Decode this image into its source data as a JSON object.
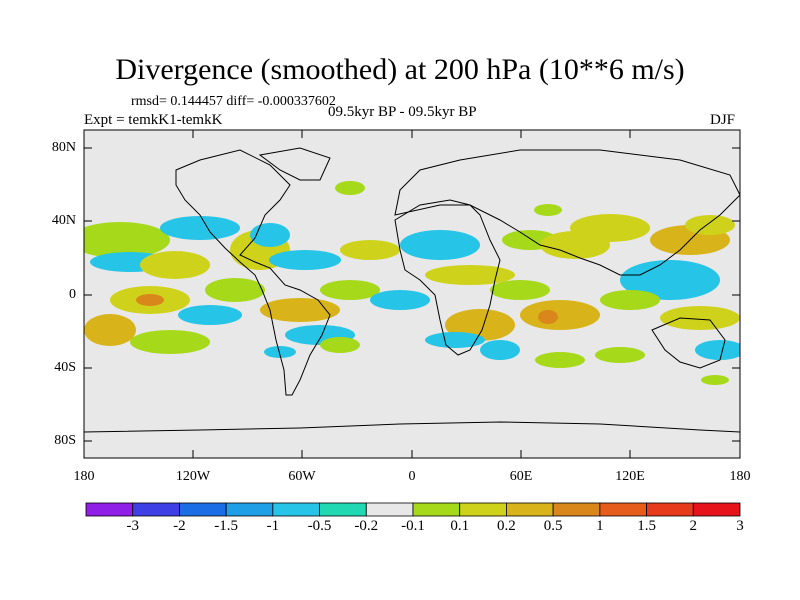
{
  "title": "Divergence (smoothed) at 200 hPa (10**6 m/s)",
  "stats": "rmsd= 0.144457  diff= -0.000337602",
  "experiment": "Expt = temkK1-temkK",
  "period": "09.5kyr BP - 09.5kyr BP",
  "season": "DJF",
  "map": {
    "background_color": "#e8e8e8",
    "y_ticks": [
      "80N",
      "40N",
      "0",
      "40S",
      "80S"
    ],
    "x_ticks": [
      "180",
      "120W",
      "60W",
      "0",
      "60E",
      "120E",
      "180"
    ]
  },
  "colorbar": {
    "colors": [
      "#8f1fe6",
      "#3f3fe6",
      "#1b6de6",
      "#1f9fe6",
      "#26c4e6",
      "#20d9b3",
      "#e8e8e8",
      "#a6d91a",
      "#cfd21a",
      "#d9b31a",
      "#d9861a",
      "#e65c1a",
      "#e63a1a",
      "#e6141a"
    ],
    "labels": [
      "-3",
      "-2",
      "-1.5",
      "-1",
      "-0.5",
      "-0.2",
      "-0.1",
      "0.1",
      "0.2",
      "0.5",
      "1",
      "1.5",
      "2",
      "3"
    ]
  }
}
